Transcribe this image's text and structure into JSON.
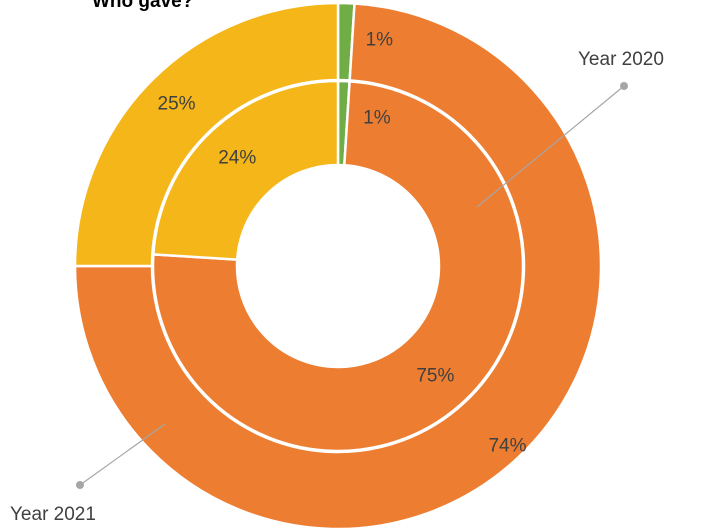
{
  "chart_data": {
    "type": "pie",
    "variant": "nested-donut",
    "title": "Who gave?",
    "category_colors": [
      "#70ad47",
      "#ed7d31",
      "#f4b619"
    ],
    "rings": [
      {
        "name": "Year 2021",
        "position": "outer",
        "values": [
          1,
          74,
          25
        ],
        "labels": [
          "1%",
          "74%",
          "25%"
        ]
      },
      {
        "name": "Year 2020",
        "position": "inner",
        "values": [
          1,
          75,
          24
        ],
        "labels": [
          "1%",
          "75%",
          "24%"
        ]
      }
    ],
    "callouts": [
      "Year 2020",
      "Year 2021"
    ]
  }
}
